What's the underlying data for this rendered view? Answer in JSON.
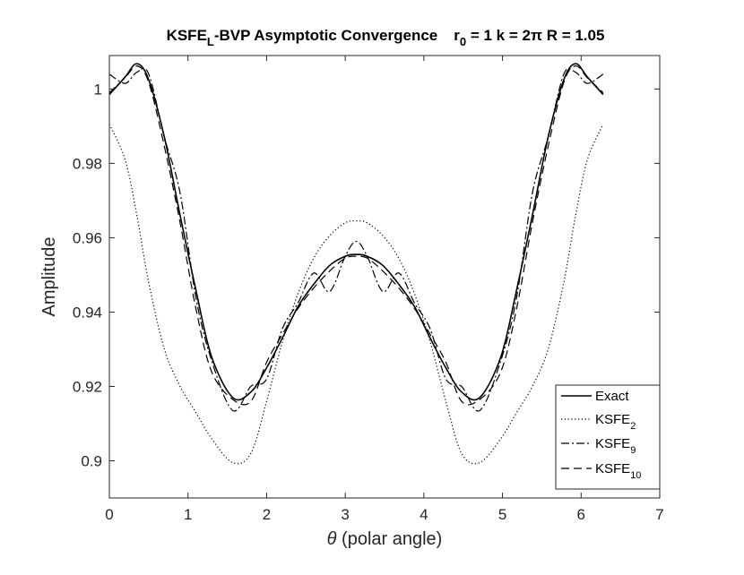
{
  "chart_data": {
    "type": "line",
    "title": {
      "prefix": "KSFE",
      "prefix_sub": "L",
      "main": "-BVP Asymptotic Convergence",
      "params_r": "r",
      "params_r_sub": "0",
      "params_rest": " = 1 k = 2π R = 1.05"
    },
    "xlabel": {
      "symbol": "θ",
      "text": " (polar angle)"
    },
    "ylabel": "Amplitude",
    "xlim": [
      0,
      7
    ],
    "ylim": [
      0.89,
      1.009
    ],
    "x_ticks": [
      0,
      1,
      2,
      3,
      4,
      5,
      6,
      7
    ],
    "x_tick_labels": [
      "0",
      "1",
      "2",
      "3",
      "4",
      "5",
      "6",
      "7"
    ],
    "y_ticks": [
      0.9,
      0.92,
      0.94,
      0.96,
      0.98,
      1.0
    ],
    "y_tick_labels": [
      "0.9",
      "0.92",
      "0.94",
      "0.96",
      "0.98",
      "1"
    ],
    "x": [
      0,
      0.2,
      0.35,
      0.5,
      0.7,
      0.9,
      1.1,
      1.3,
      1.57,
      1.8,
      2.0,
      2.2,
      2.4,
      2.6,
      2.8,
      3.0,
      3.14,
      3.28,
      3.48,
      3.68,
      3.88,
      4.08,
      4.28,
      4.48,
      4.71,
      4.98,
      5.18,
      5.38,
      5.58,
      5.78,
      5.93,
      6.08,
      6.28
    ],
    "series": [
      {
        "name": "Exact",
        "name_sub": "",
        "style": "solid",
        "values": [
          0.9985,
          1.0032,
          1.0068,
          1.0025,
          0.987,
          0.966,
          0.946,
          0.928,
          0.917,
          0.9185,
          0.925,
          0.933,
          0.9415,
          0.9475,
          0.9525,
          0.955,
          0.9555,
          0.955,
          0.9525,
          0.9475,
          0.9415,
          0.933,
          0.925,
          0.9185,
          0.917,
          0.928,
          0.946,
          0.966,
          0.987,
          1.0025,
          1.0068,
          1.0032,
          0.9985
        ]
      },
      {
        "name": "KSFE",
        "name_sub": "2",
        "style": "dotted",
        "values": [
          0.9905,
          0.981,
          0.966,
          0.948,
          0.93,
          0.92,
          0.913,
          0.906,
          0.8995,
          0.902,
          0.916,
          0.932,
          0.945,
          0.9545,
          0.9605,
          0.964,
          0.9645,
          0.964,
          0.9605,
          0.9545,
          0.945,
          0.932,
          0.916,
          0.902,
          0.8995,
          0.906,
          0.913,
          0.92,
          0.93,
          0.948,
          0.966,
          0.981,
          0.9905
        ]
      },
      {
        "name": "KSFE",
        "name_sub": "9",
        "style": "dashdot",
        "values": [
          1.004,
          1.0015,
          1.0045,
          1.004,
          0.987,
          0.972,
          0.944,
          0.927,
          0.9135,
          0.92,
          0.922,
          0.9355,
          0.9425,
          0.9505,
          0.9455,
          0.955,
          0.959,
          0.955,
          0.9455,
          0.9505,
          0.9425,
          0.9355,
          0.922,
          0.92,
          0.9135,
          0.927,
          0.944,
          0.972,
          0.987,
          1.004,
          1.0045,
          1.0015,
          1.004
        ]
      },
      {
        "name": "KSFE",
        "name_sub": "10",
        "style": "dashed",
        "values": [
          0.999,
          1.003,
          1.0062,
          1.0018,
          0.9845,
          0.964,
          0.941,
          0.924,
          0.9165,
          0.916,
          0.9265,
          0.934,
          0.941,
          0.9465,
          0.951,
          0.9545,
          0.955,
          0.9545,
          0.951,
          0.9465,
          0.941,
          0.934,
          0.9265,
          0.916,
          0.9165,
          0.924,
          0.941,
          0.964,
          0.9845,
          1.0018,
          1.0062,
          1.003,
          0.999
        ]
      }
    ],
    "legend_position": "bottom-right"
  }
}
